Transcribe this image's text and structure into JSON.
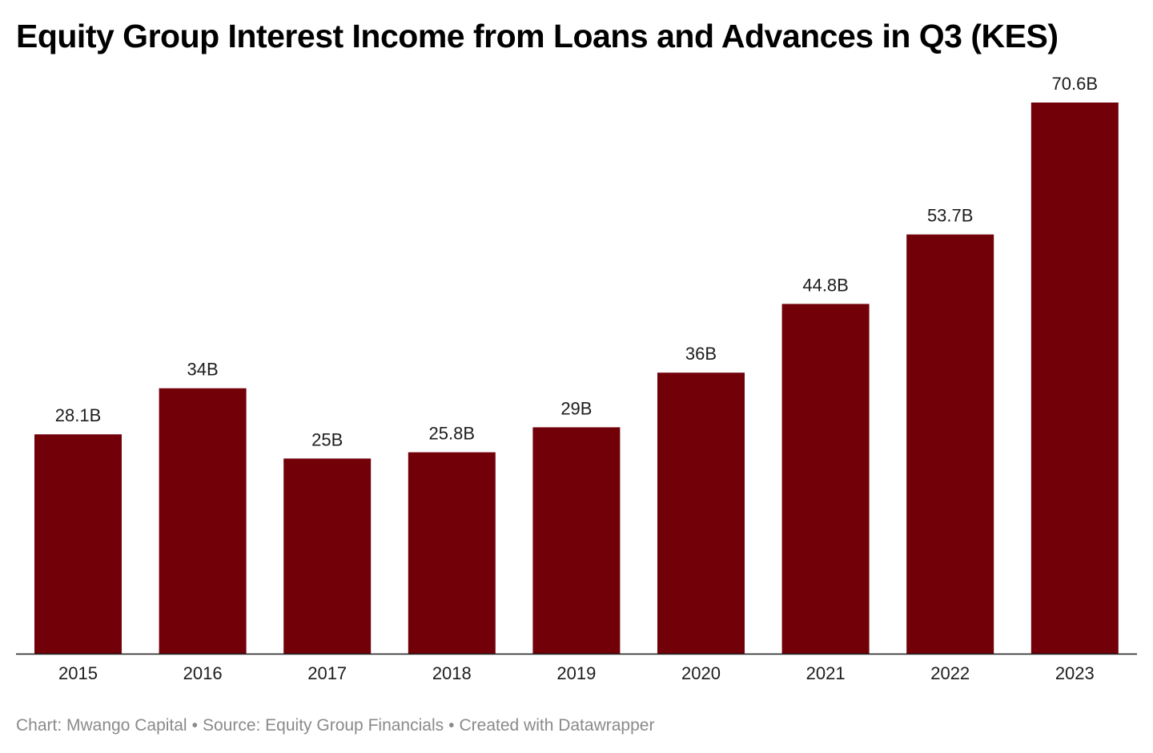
{
  "chart_data": {
    "type": "bar",
    "title": "Equity Group Interest Income from Loans and Advances in Q3 (KES)",
    "categories": [
      "2015",
      "2016",
      "2017",
      "2018",
      "2019",
      "2020",
      "2021",
      "2022",
      "2023"
    ],
    "values": [
      28.1,
      34,
      25,
      25.8,
      29,
      36,
      44.8,
      53.7,
      70.6
    ],
    "value_labels": [
      "28.1B",
      "34B",
      "25B",
      "25.8B",
      "29B",
      "36B",
      "44.8B",
      "53.7B",
      "70.6B"
    ],
    "xlabel": "",
    "ylabel": "",
    "ylim": [
      0,
      70.6
    ],
    "grid": false,
    "bar_color": "#710009",
    "axis_color": "#1d1d1d"
  },
  "footer": {
    "chart_credit": "Chart: Mwango Capital",
    "source": "Source: Equity Group Financials",
    "tool": "Created with Datawrapper",
    "separator": "•"
  }
}
